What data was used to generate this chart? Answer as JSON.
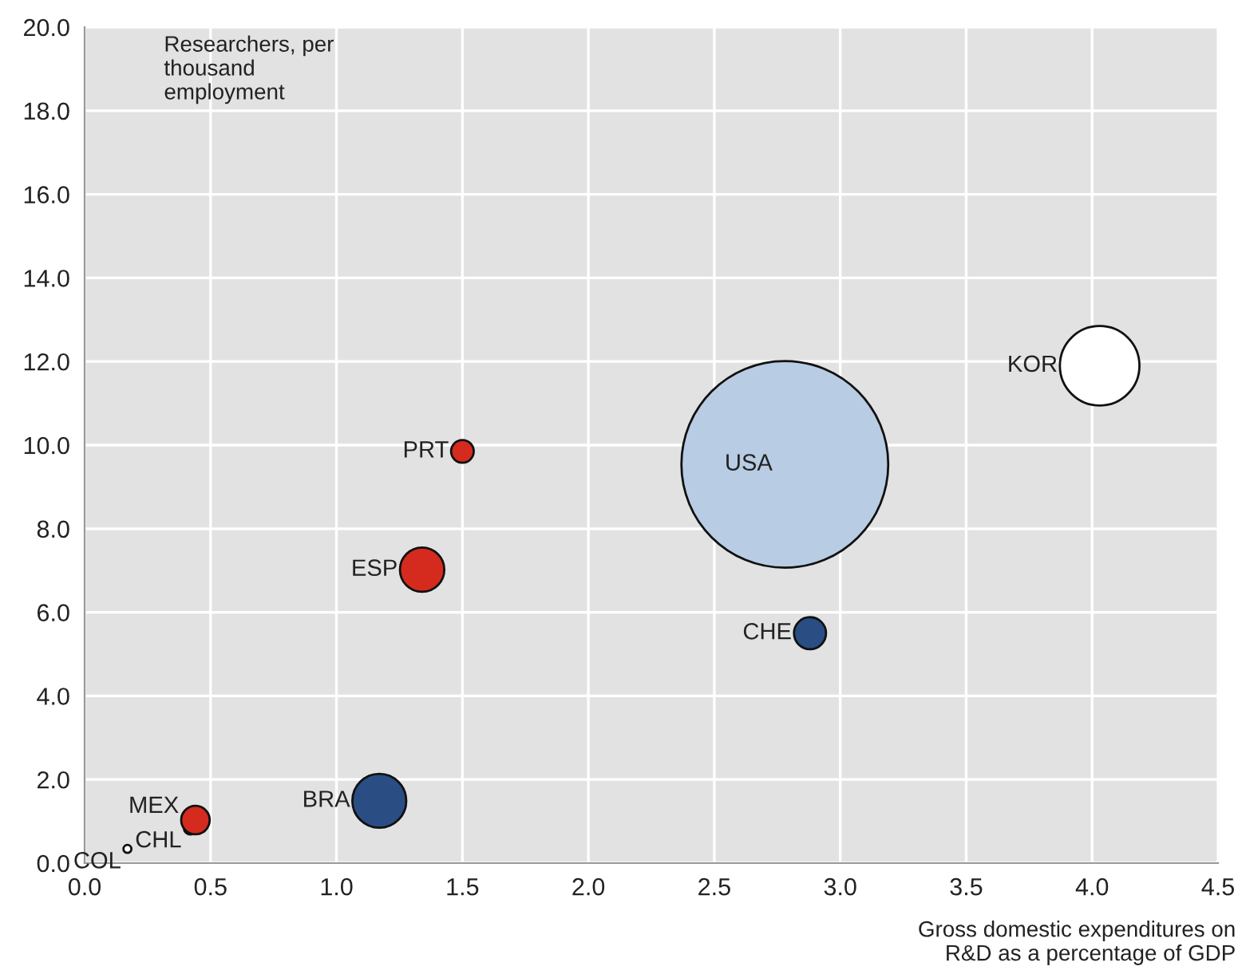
{
  "chart_data": {
    "type": "bubble",
    "ylabel": "Researchers, per\nthousand\nemployment",
    "xlabel": "Gross domestic expenditures on\nR&D as a percentage of GDP",
    "xlim": [
      0,
      4.5
    ],
    "xticks": [
      {
        "value": 0,
        "label": "0.0"
      },
      0.5,
      {
        "value": 1,
        "label": "1.0"
      },
      1.5,
      {
        "value": 2,
        "label": "2.0"
      },
      2.5,
      {
        "value": 3,
        "label": "3.0"
      },
      3.5,
      {
        "value": 4,
        "label": "4.0"
      },
      4.5
    ],
    "ylim": [
      0,
      20
    ],
    "yticks": [
      {
        "value": 0,
        "label": "0.0"
      },
      {
        "value": 2,
        "label": "2.0"
      },
      {
        "value": 4,
        "label": "4.0"
      },
      {
        "value": 6,
        "label": "6.0"
      },
      {
        "value": 8,
        "label": "8.0"
      },
      {
        "value": 10,
        "label": "10.0"
      },
      {
        "value": 12,
        "label": "12.0"
      },
      {
        "value": 14,
        "label": "14.0"
      },
      {
        "value": 16,
        "label": "16.0"
      },
      {
        "value": 18,
        "label": "18.0"
      },
      {
        "value": 20,
        "label": "20.0"
      }
    ],
    "grid": true,
    "legend": false,
    "series": [
      {
        "name": "COL",
        "color": "#ffffff",
        "x": [
          0.17
        ],
        "values": [
          0.34
        ],
        "sizes": [
          0.0015
        ]
      },
      {
        "name": "CHL",
        "color": "#ffffff",
        "x": [
          0.42
        ],
        "values": [
          0.84
        ],
        "sizes": [
          0.004
        ]
      },
      {
        "name": "MEX",
        "color": "#d52b1e",
        "x": [
          0.44
        ],
        "values": [
          1.03
        ],
        "sizes": [
          0.019
        ]
      },
      {
        "name": "BRA",
        "color": "#2a4d84",
        "x": [
          1.17
        ],
        "values": [
          1.49
        ],
        "sizes": [
          0.068
        ]
      },
      {
        "name": "ESP",
        "color": "#d52b1e",
        "x": [
          1.34
        ],
        "values": [
          7.02
        ],
        "sizes": [
          0.046
        ]
      },
      {
        "name": "PRT",
        "color": "#d52b1e",
        "x": [
          1.5
        ],
        "values": [
          9.85
        ],
        "sizes": [
          0.012
        ]
      },
      {
        "name": "USA",
        "color": "#b8cce4",
        "x": [
          2.78
        ],
        "values": [
          9.54
        ],
        "sizes": [
          1
        ]
      },
      {
        "name": "CHE",
        "color": "#2a4d84",
        "x": [
          2.88
        ],
        "values": [
          5.5
        ],
        "sizes": [
          0.024
        ]
      },
      {
        "name": "KOR",
        "color": "#ffffff",
        "x": [
          4.03
        ],
        "values": [
          11.9
        ],
        "sizes": [
          0.148
        ]
      }
    ]
  }
}
